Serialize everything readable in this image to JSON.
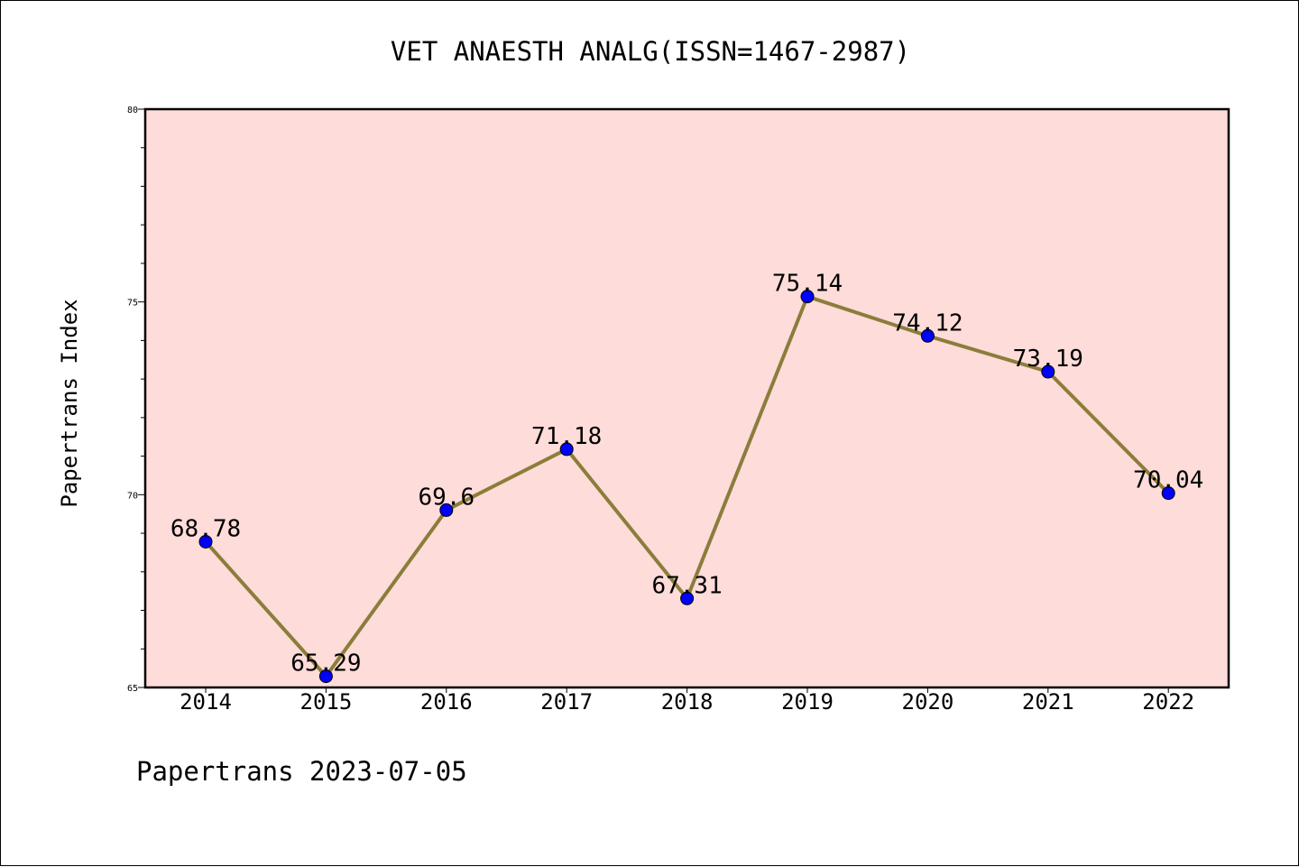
{
  "chart_data": {
    "type": "line",
    "title": "VET ANAESTH ANALG(ISSN=1467-2987)",
    "xlabel": "",
    "ylabel": "Papertrans Index",
    "footer": "Papertrans 2023-07-05",
    "categories": [
      "2014",
      "2015",
      "2016",
      "2017",
      "2018",
      "2019",
      "2020",
      "2021",
      "2022"
    ],
    "series": [
      {
        "values": [
          68.78,
          65.29,
          69.6,
          71.18,
          67.31,
          75.14,
          74.12,
          73.19,
          70.04
        ],
        "labels": [
          "68.78",
          "65.29",
          "69.6",
          "71.18",
          "67.31",
          "75.14",
          "74.12",
          "73.19",
          "70.04"
        ]
      }
    ],
    "ylim": [
      65,
      80
    ],
    "yticks": [
      "65",
      "70",
      "75",
      "80"
    ],
    "y_minor_step": 1,
    "grid": false,
    "colors": {
      "plot_background": "#fddcd9",
      "line": "#8b7d3a",
      "marker": "#0000ff"
    }
  }
}
